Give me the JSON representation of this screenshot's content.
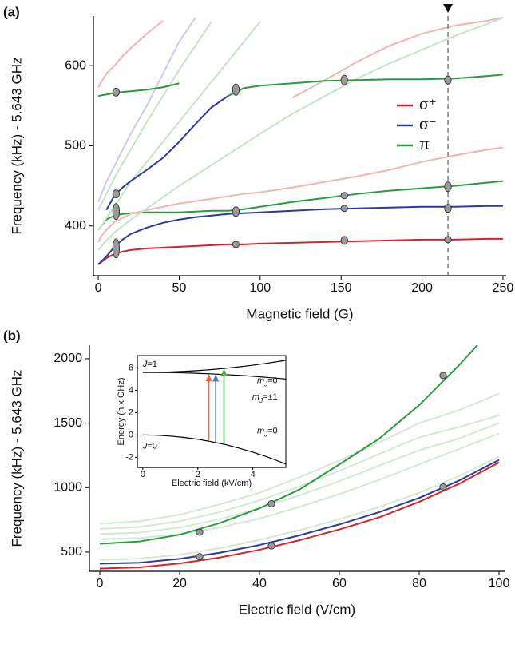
{
  "chart_data": [
    {
      "type": "line",
      "panel_label": "(a)",
      "xlabel": "Magnetic field (G)",
      "ylabel": "Frequency (kHz) - 5.643 GHz",
      "x": [
        0,
        2,
        5,
        10,
        15,
        20,
        30,
        40,
        50,
        60,
        70,
        80,
        90,
        100,
        120,
        140,
        160,
        180,
        200,
        220,
        240,
        250
      ],
      "xlim": [
        -3,
        252
      ],
      "ylim": [
        338,
        662
      ],
      "xticks": [
        0,
        50,
        100,
        150,
        200,
        250
      ],
      "yticks": [
        400,
        500,
        600
      ],
      "legend": "right",
      "series": [
        {
          "name": "σ⁺",
          "color": "#d8232a",
          "values": [
            352,
            355,
            360,
            365,
            368,
            370,
            372,
            373,
            374,
            375,
            376,
            377,
            377,
            378,
            379,
            380,
            381,
            382,
            383,
            383,
            384,
            384
          ]
        },
        {
          "name": "σ⁻",
          "color": "#2a3b9a",
          "values": [
            352,
            356,
            362,
            374,
            383,
            390,
            398,
            404,
            408,
            411,
            413,
            415,
            416,
            417,
            419,
            421,
            422,
            423,
            424,
            424,
            425,
            425
          ]
        },
        {
          "name": "π",
          "color": "#2b9a3f",
          "values": [
            395,
            400,
            408,
            413,
            415,
            416,
            417,
            417,
            417,
            418,
            419,
            419,
            421,
            424,
            430,
            435,
            440,
            444,
            447,
            450,
            454,
            456
          ]
        },
        {
          "color": "#f4b3b5",
          "values": [
            573,
            580,
            590,
            600,
            612,
            622,
            640,
            656,
            null,
            null,
            null,
            null,
            null,
            null,
            null,
            null,
            null,
            null,
            null,
            null,
            null,
            null
          ]
        },
        {
          "color": "#f4b3b5",
          "values": [
            380,
            388,
            395,
            405,
            410,
            415,
            420,
            424,
            428,
            431,
            434,
            437,
            440,
            442,
            448,
            455,
            462,
            470,
            480,
            488,
            495,
            498
          ]
        },
        {
          "color": "#f4b3b5",
          "values": [
            null,
            null,
            null,
            null,
            null,
            null,
            null,
            null,
            null,
            null,
            null,
            null,
            null,
            null,
            560,
            582,
            605,
            625,
            640,
            650,
            656,
            660
          ]
        },
        {
          "color": "#c5e3c7",
          "values": [
            420,
            428,
            440,
            460,
            478,
            495,
            530,
            562,
            595,
            625,
            655,
            null,
            null,
            null,
            null,
            null,
            null,
            null,
            null,
            null,
            null,
            null
          ]
        },
        {
          "color": "#c5e3c7",
          "values": [
            395,
            400,
            410,
            425,
            440,
            455,
            480,
            505,
            530,
            555,
            580,
            605,
            630,
            655,
            null,
            null,
            null,
            null,
            null,
            null,
            null,
            null
          ]
        },
        {
          "color": "#c5e3c7",
          "values": [
            370,
            375,
            382,
            392,
            400,
            408,
            422,
            436,
            450,
            463,
            476,
            489,
            502,
            515,
            540,
            562,
            584,
            603,
            620,
            637,
            652,
            660
          ]
        },
        {
          "color": "#c9cbeb",
          "values": [
            430,
            440,
            455,
            475,
            495,
            515,
            550,
            590,
            630,
            660,
            null,
            null,
            null,
            null,
            null,
            null,
            null,
            null,
            null,
            null,
            null,
            null
          ]
        },
        {
          "color": "#2b9a3f",
          "values": [
            562,
            563,
            564,
            566,
            567,
            568,
            570,
            573,
            578,
            null,
            null,
            null,
            null,
            null,
            null,
            null,
            null,
            null,
            null,
            null,
            null,
            null
          ]
        },
        {
          "color": "#2a3b9a",
          "values": [
            null,
            null,
            420,
            438,
            448,
            456,
            470,
            485,
            505,
            527,
            548,
            562,
            null,
            null,
            null,
            null,
            null,
            null,
            null,
            null,
            null,
            null
          ]
        },
        {
          "color": "#2b9a3f",
          "values": [
            null,
            null,
            null,
            null,
            null,
            null,
            null,
            null,
            null,
            null,
            null,
            562,
            572,
            575,
            578,
            581,
            582,
            583,
            583,
            584,
            587,
            589
          ]
        }
      ],
      "markers": {
        "color": "#9a9a9a",
        "x": [
          11,
          11,
          11,
          11,
          85,
          85,
          85,
          152,
          152,
          152,
          152,
          216,
          216,
          216,
          216
        ],
        "values": [
          567,
          440,
          418,
          372,
          570,
          418,
          377,
          582,
          438,
          422,
          382,
          582,
          449,
          422,
          383
        ],
        "errors": [
          5,
          5,
          10,
          12,
          7,
          6,
          3,
          6,
          3,
          3,
          5,
          5,
          6,
          5,
          3
        ]
      },
      "vline": 216
    },
    {
      "type": "line",
      "panel_label": "(b)",
      "xlabel": "Electric field (V/cm)",
      "ylabel": "Frequency (kHz) - 5.643 GHz",
      "x": [
        0,
        10,
        20,
        30,
        40,
        50,
        60,
        70,
        80,
        90,
        100
      ],
      "xlim": [
        -2.6,
        101.4
      ],
      "ylim": [
        351,
        2105
      ],
      "xticks": [
        0,
        20,
        40,
        60,
        80,
        100
      ],
      "yticks": [
        500,
        1000,
        1500,
        2000
      ],
      "series": [
        {
          "color": "#d3e9d3",
          "values": [
            720,
            740,
            790,
            870,
            960,
            1080,
            1210,
            1350,
            1500,
            1600,
            1730
          ]
        },
        {
          "color": "#d3e9d3",
          "values": [
            680,
            695,
            740,
            810,
            900,
            1010,
            1130,
            1260,
            1390,
            1470,
            1560
          ]
        },
        {
          "color": "#d3e9d3",
          "values": [
            640,
            652,
            690,
            755,
            840,
            940,
            1050,
            1170,
            1290,
            1380,
            1500
          ]
        },
        {
          "color": "#d3e9d3",
          "values": [
            600,
            610,
            640,
            690,
            760,
            850,
            950,
            1060,
            1180,
            1300,
            1420
          ]
        },
        {
          "color": "#d3e9d3",
          "values": [
            440,
            450,
            480,
            530,
            595,
            670,
            755,
            850,
            960,
            1090,
            1240
          ]
        },
        {
          "color": "#2b9a3f",
          "values": [
            565,
            583,
            635,
            725,
            840,
            985,
            1180,
            1380,
            1640,
            1950,
            2290
          ]
        },
        {
          "color": "#2a3b9a",
          "values": [
            410,
            418,
            448,
            495,
            555,
            630,
            715,
            810,
            920,
            1055,
            1215
          ]
        },
        {
          "color": "#d8232a",
          "values": [
            372,
            382,
            412,
            458,
            518,
            592,
            676,
            770,
            890,
            1030,
            1195
          ]
        }
      ],
      "markers": {
        "color": "#9a9a9a",
        "x": [
          25,
          25,
          43,
          43,
          86,
          86
        ],
        "values": [
          655,
          465,
          875,
          548,
          1870,
          1005
        ],
        "errors": [
          12,
          12,
          5,
          10,
          5,
          5
        ]
      }
    },
    {
      "type": "line",
      "xlabel": "Electric field (kV/cm)",
      "ylabel": "Energy (h x GHz)",
      "x": [
        0,
        0.5,
        1,
        1.5,
        2,
        2.5,
        3,
        3.5,
        4,
        4.5,
        5,
        5.2
      ],
      "xlim": [
        -0.2,
        5.2
      ],
      "ylim": [
        -2.9,
        7.1
      ],
      "xticks": [
        0,
        2,
        4
      ],
      "yticks": [
        -2,
        0,
        2,
        4,
        6
      ],
      "series": [
        {
          "color": "#000000",
          "values": [
            5.6,
            5.61,
            5.64,
            5.69,
            5.76,
            5.85,
            5.96,
            6.09,
            6.24,
            6.41,
            6.6,
            6.68
          ]
        },
        {
          "color": "#000000",
          "values": [
            5.6,
            5.59,
            5.58,
            5.55,
            5.51,
            5.46,
            5.4,
            5.33,
            5.25,
            5.15,
            5.05,
            5.0
          ]
        },
        {
          "color": "#000000",
          "values": [
            0,
            -0.02,
            -0.1,
            -0.22,
            -0.38,
            -0.6,
            -0.86,
            -1.18,
            -1.54,
            -1.94,
            -2.4,
            -2.6
          ]
        }
      ],
      "arrows": {
        "x": [
          2.4,
          2.65,
          2.95
        ],
        "from": [
          -0.55,
          -0.67,
          -0.83
        ],
        "to": [
          5.45,
          5.42,
          5.93
        ],
        "colors": [
          "#f0623a",
          "#5b6fc2",
          "#4caf50"
        ]
      },
      "labels": [
        "J=1",
        "mJ=0",
        "mJ=±1",
        "J=0",
        "mJ=0"
      ]
    }
  ]
}
